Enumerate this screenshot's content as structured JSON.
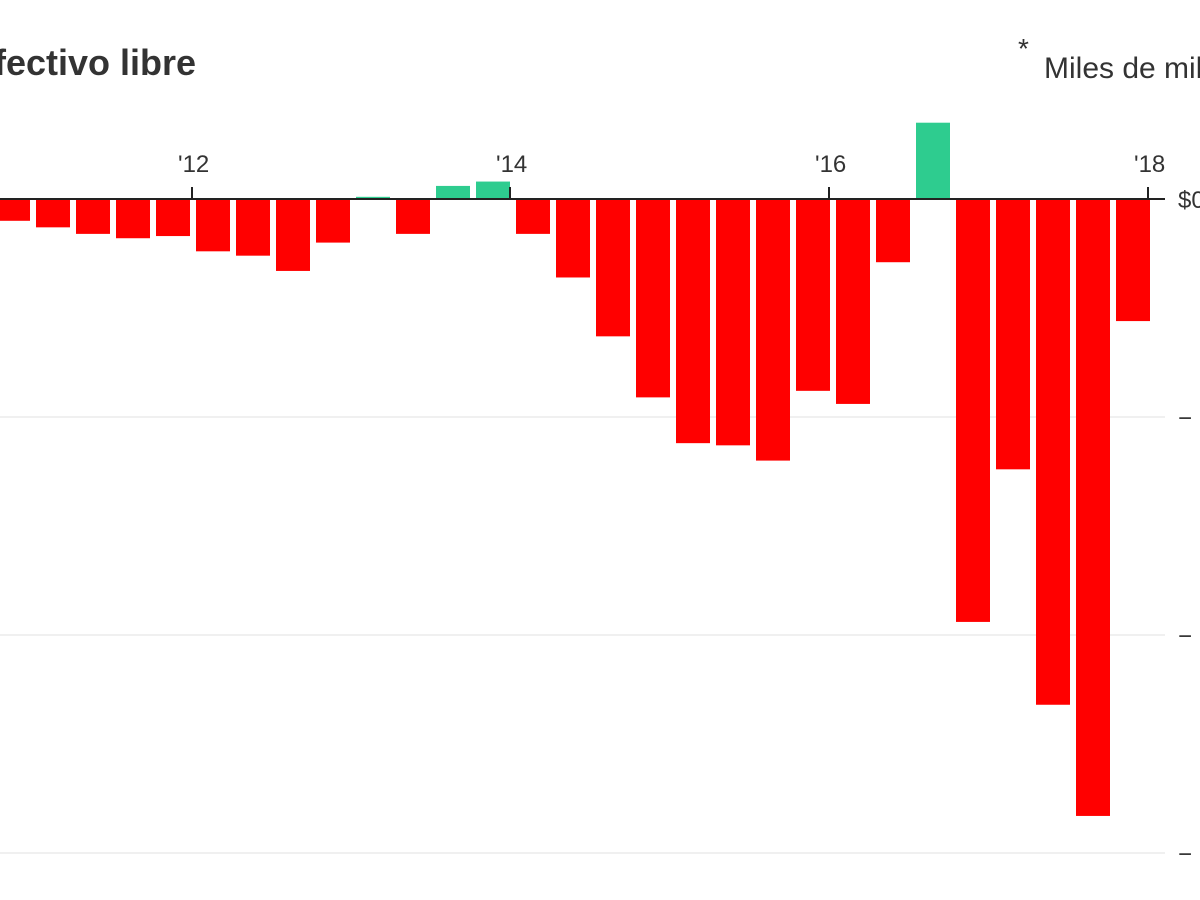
{
  "chart_data": {
    "type": "bar",
    "title": "fectivo libre",
    "unit_note": "Miles de mill",
    "unit_marker": "*",
    "x_ticks": [
      "'12",
      "'14",
      "'16",
      "'18"
    ],
    "y_ticks": [
      "$0",
      "−",
      "−",
      "−"
    ],
    "y_tick_values": [
      0,
      -1,
      -2,
      -3
    ],
    "ylim": [
      -3.05,
      0.4
    ],
    "grid": true,
    "legend": "none",
    "positive_color": "#2ecc8f",
    "negative_color": "#ff0000",
    "values": [
      -0.1,
      -0.13,
      -0.16,
      -0.18,
      -0.17,
      -0.24,
      -0.26,
      -0.33,
      -0.2,
      0.01,
      -0.16,
      0.06,
      0.08,
      -0.16,
      -0.36,
      -0.63,
      -0.91,
      -1.12,
      -1.13,
      -1.2,
      -0.88,
      -0.94,
      -0.29,
      0.35,
      -1.94,
      -1.24,
      -2.32,
      -2.83,
      -0.56
    ]
  }
}
